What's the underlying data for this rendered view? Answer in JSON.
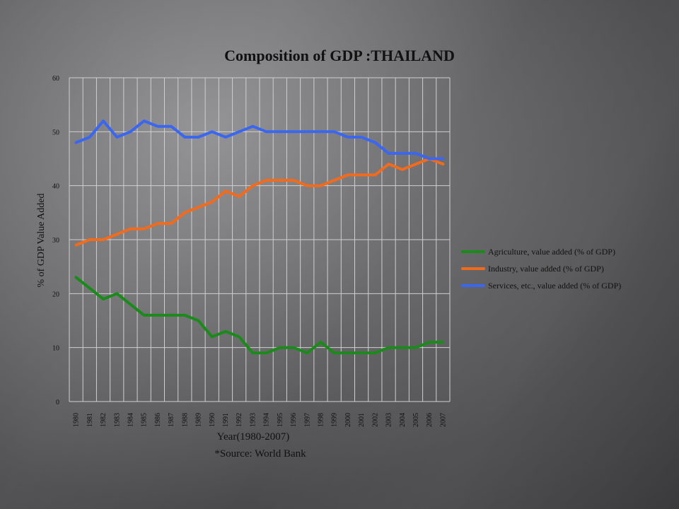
{
  "chart_data": {
    "type": "line",
    "title": "Composition of GDP :THAILAND",
    "xlabel": "Year(1980-2007)",
    "ylabel": "% of GDP Value Added",
    "source_note": "*Source: World Bank",
    "ylim": [
      0,
      60
    ],
    "yticks": [
      0,
      10,
      20,
      30,
      40,
      50,
      60
    ],
    "grid": true,
    "legend_position": "right",
    "x": [
      "1980",
      "1981",
      "1982",
      "1983",
      "1984",
      "1985",
      "1986",
      "1987",
      "1988",
      "1989",
      "1990",
      "1991",
      "1992",
      "1993",
      "1994",
      "1995",
      "1996",
      "1997",
      "1998",
      "1999",
      "2000",
      "2001",
      "2002",
      "2003",
      "2004",
      "2005",
      "2006",
      "2007"
    ],
    "series": [
      {
        "name": "Agriculture, value added (% of GDP)",
        "color": "#1a8a1a",
        "values": [
          23,
          21,
          19,
          20,
          18,
          16,
          16,
          16,
          16,
          15,
          12,
          13,
          12,
          9,
          9,
          10,
          10,
          9,
          11,
          9,
          9,
          9,
          9,
          10,
          10,
          10,
          11,
          11
        ]
      },
      {
        "name": "Industry, value added (% of GDP)",
        "color": "#f26b1d",
        "values": [
          29,
          30,
          30,
          31,
          32,
          32,
          33,
          33,
          35,
          36,
          37,
          39,
          38,
          40,
          41,
          41,
          41,
          40,
          40,
          41,
          42,
          42,
          42,
          44,
          43,
          44,
          45,
          44
        ]
      },
      {
        "name": "Services, etc., value added (% of GDP)",
        "color": "#3a66f0",
        "values": [
          48,
          49,
          52,
          49,
          50,
          52,
          51,
          51,
          49,
          49,
          50,
          49,
          50,
          51,
          50,
          50,
          50,
          50,
          50,
          50,
          49,
          49,
          48,
          46,
          46,
          46,
          45,
          45
        ]
      }
    ]
  }
}
